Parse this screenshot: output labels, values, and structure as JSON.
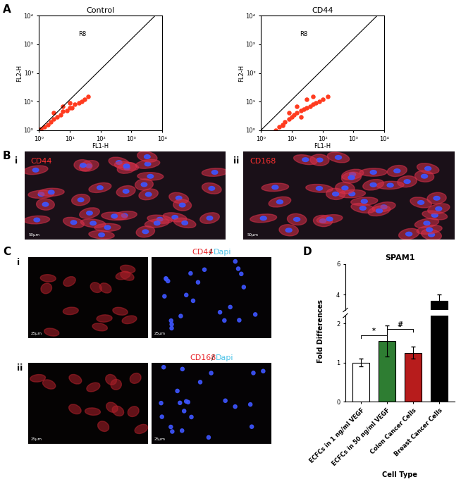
{
  "panels": [
    "A",
    "B",
    "C",
    "D"
  ],
  "sub_labels": [
    "i",
    "ii"
  ],
  "images": {
    "B": [
      {
        "title": "CD44",
        "scale_bar": "50µm"
      },
      {
        "title": "CD168",
        "scale_bar": "50µm"
      }
    ],
    "C": [
      {
        "title_parts": [
          {
            "text": "CD44",
            "color": "#e8262b"
          },
          {
            "text": "/",
            "color": "#222222"
          },
          {
            "text": "Dapi",
            "color": "#4fc3e8"
          }
        ],
        "scale_bar": "25µm"
      },
      {
        "title_parts": [
          {
            "text": "CD168",
            "color": "#e8262b"
          },
          {
            "text": "/",
            "color": "#222222"
          },
          {
            "text": "Dapi",
            "color": "#4fc3e8"
          }
        ],
        "scale_bar": "25µm"
      }
    ]
  },
  "chart_data": [
    {
      "type": "scatter",
      "title": "Control",
      "xlabel": "FL1-H",
      "ylabel": "FL2-H",
      "log": true,
      "xlim": [
        1,
        10000
      ],
      "ylim": [
        1,
        10000
      ],
      "xticks": [
        {
          "value": 1,
          "label": "10⁰"
        },
        {
          "value": 10,
          "label": "10¹"
        },
        {
          "value": 100,
          "label": "10²"
        },
        {
          "value": 1000,
          "label": "10³"
        },
        {
          "value": 10000,
          "label": "10⁴"
        }
      ],
      "yticks": [
        {
          "value": 1,
          "label": "10⁰"
        },
        {
          "value": 10,
          "label": "10¹"
        },
        {
          "value": 100,
          "label": "10²"
        },
        {
          "value": 1000,
          "label": "10³"
        },
        {
          "value": 10000,
          "label": "10⁴"
        }
      ],
      "color": "#ff3b1f",
      "marker": "o",
      "x": [
        1,
        1.2,
        1.5,
        2,
        2.5,
        3,
        4,
        5,
        6,
        8,
        10,
        12,
        15,
        20,
        25,
        30,
        40,
        3,
        6,
        10
      ],
      "y": [
        1,
        1.1,
        1.3,
        1.6,
        2,
        2.5,
        3,
        3.5,
        4.5,
        5,
        6,
        6,
        8,
        9,
        10,
        12,
        15,
        4,
        7,
        9
      ],
      "gate": {
        "name": "R8",
        "x": [
          1,
          6000,
          1
        ],
        "y": [
          1,
          10000,
          10000
        ]
      }
    },
    {
      "type": "scatter",
      "title": "CD44",
      "xlabel": "FL1-H",
      "ylabel": "FL2-H",
      "log": true,
      "xlim": [
        1,
        10000
      ],
      "ylim": [
        1,
        10000
      ],
      "xticks": [
        {
          "value": 1,
          "label": "10⁰"
        },
        {
          "value": 10,
          "label": "10¹"
        },
        {
          "value": 100,
          "label": "10²"
        },
        {
          "value": 1000,
          "label": "10³"
        },
        {
          "value": 10000,
          "label": "10⁴"
        }
      ],
      "yticks": [
        {
          "value": 1,
          "label": "10⁰"
        },
        {
          "value": 10,
          "label": "10¹"
        },
        {
          "value": 100,
          "label": "10²"
        },
        {
          "value": 1000,
          "label": "10³"
        },
        {
          "value": 10000,
          "label": "10⁴"
        }
      ],
      "color": "#ff3b1f",
      "marker": "o",
      "x": [
        3,
        4,
        5,
        6,
        8,
        10,
        12,
        15,
        20,
        25,
        30,
        40,
        50,
        60,
        80,
        100,
        150,
        8,
        15,
        30,
        50,
        5,
        20
      ],
      "y": [
        1,
        1.3,
        1.6,
        2,
        2.5,
        3,
        3.5,
        4,
        5,
        5.5,
        6,
        7,
        8,
        9,
        10,
        12,
        15,
        4,
        7,
        12,
        15,
        1.5,
        3
      ],
      "gate": {
        "name": "R8",
        "x": [
          1,
          6000,
          1
        ],
        "y": [
          1,
          10000,
          10000
        ]
      }
    },
    {
      "type": "bar",
      "title": "SPAM1",
      "xlabel": "Cell Type",
      "ylabel": "Fold Differences",
      "categories": [
        "ECFCs in 1 ng/ml VEGF",
        "ECFCs in 50 ng/ml VEGF",
        "Colon Cancer Cells",
        "Breast Cancer Cells"
      ],
      "values": [
        1.0,
        1.55,
        1.25,
        3.6
      ],
      "errors": [
        0.1,
        0.4,
        0.15,
        0.4
      ],
      "colors": [
        "#ffffff",
        "#2e7d32",
        "#b71c1c",
        "#000000"
      ],
      "ylim": [
        0,
        6
      ],
      "yticks": [
        0,
        1,
        2,
        4,
        6
      ],
      "y_break": [
        2.2,
        3
      ],
      "annotations": [
        {
          "text": "*",
          "from": 0,
          "to": 1
        },
        {
          "text": "#",
          "from": 1,
          "to": 2
        }
      ]
    }
  ]
}
